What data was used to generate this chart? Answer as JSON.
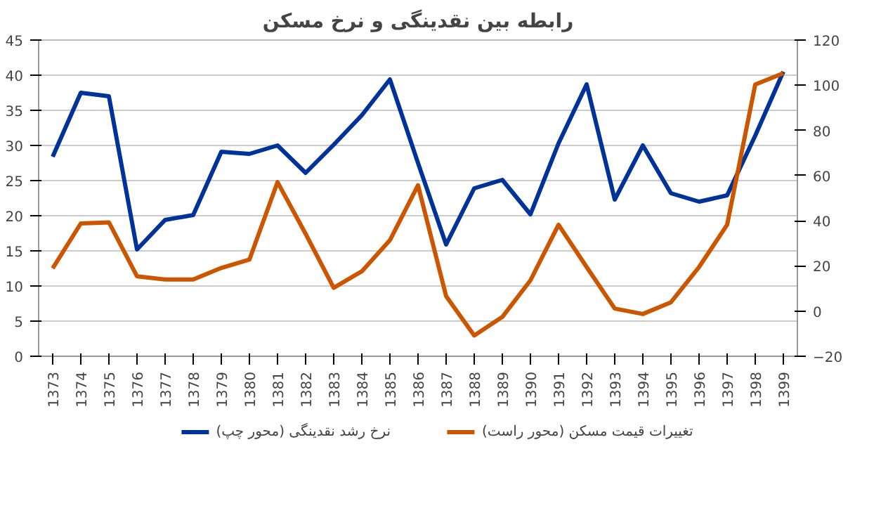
{
  "chart_data": {
    "type": "line",
    "title": "رابطه بین نقدینگی و نرخ مسکن",
    "categories": [
      "1373",
      "1374",
      "1375",
      "1376",
      "1377",
      "1378",
      "1379",
      "1380",
      "1381",
      "1382",
      "1383",
      "1384",
      "1385",
      "1386",
      "1387",
      "1388",
      "1389",
      "1390",
      "1391",
      "1392",
      "1393",
      "1394",
      "1395",
      "1396",
      "1397",
      "1398",
      "1399"
    ],
    "series": [
      {
        "name": "نرخ رشد نقدینگی (محور چپ)",
        "color": "#003399",
        "values": [
          28.4,
          37.5,
          37,
          15.2,
          19.4,
          20.1,
          29.1,
          28.8,
          30,
          26.1,
          30.1,
          34.3,
          39.4,
          27.5,
          15.9,
          23.9,
          25.1,
          20.2,
          30.3,
          38.7,
          22.3,
          30,
          23.2,
          22,
          22.9,
          31.4,
          40.5
        ]
      },
      {
        "name": "تغییرات قیمت مسکن (محور راست)",
        "color": "#cc5500",
        "axis": "y2",
        "values": [
          18.9,
          38.8,
          39.3,
          15.4,
          14,
          14,
          19.1,
          22.8,
          57.1,
          34.2,
          10.3,
          17.6,
          31.4,
          55.7,
          6.6,
          -10.8,
          -2.6,
          13.6,
          38.2,
          19.5,
          1.1,
          -1.3,
          3.9,
          19.5,
          38.2,
          100.3,
          105.3
        ]
      }
    ],
    "ylim": [
      0,
      45
    ],
    "yticks": [
      0,
      5,
      10,
      15,
      20,
      25,
      30,
      35,
      40,
      45
    ],
    "y2lim": [
      -20,
      120
    ],
    "y2ticks": [
      -20,
      0,
      20,
      40,
      60,
      80,
      100,
      120
    ],
    "grid": "y",
    "legend": "bottom",
    "marker": "none",
    "line_style": "solid"
  }
}
